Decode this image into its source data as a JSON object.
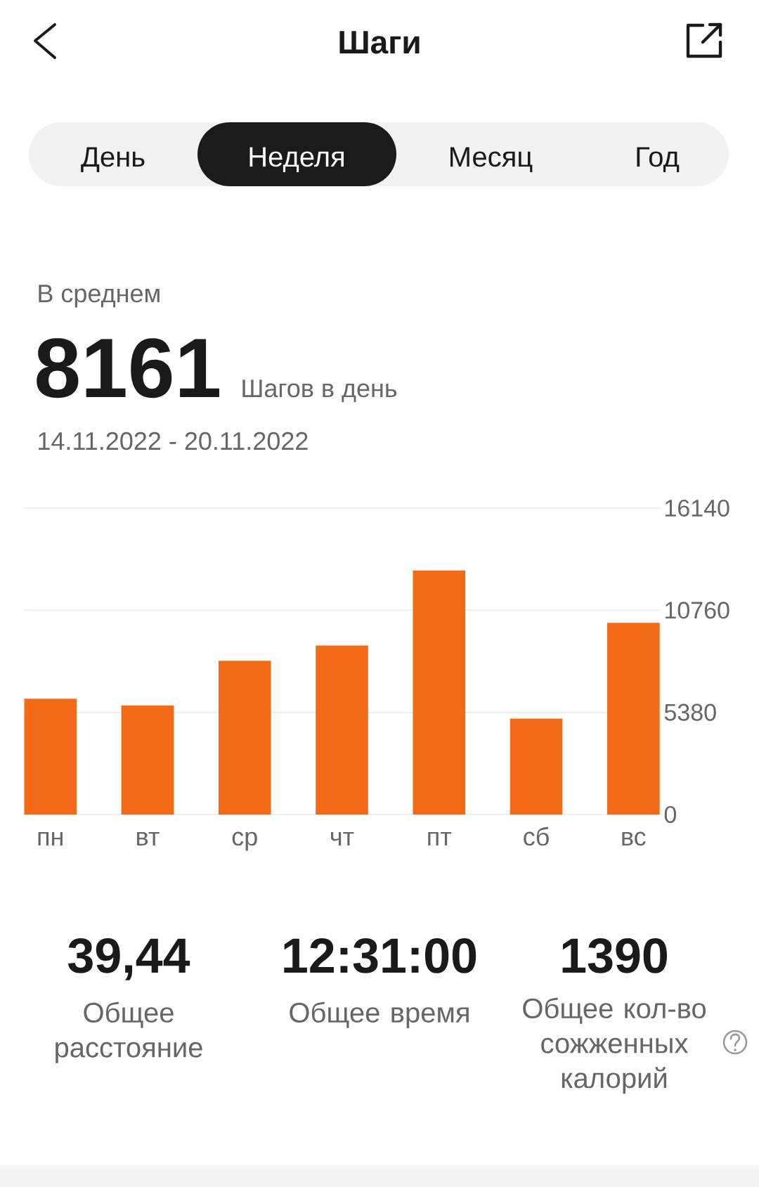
{
  "chart_data": {
    "type": "bar",
    "title": "Шаги",
    "subtitle": "14.11.2022 - 20.11.2022",
    "categories": [
      "пн",
      "вт",
      "ср",
      "чт",
      "пт",
      "сб",
      "вс"
    ],
    "values": [
      6100,
      5750,
      8100,
      8900,
      12850,
      5050,
      10100
    ],
    "color": "#f36b18",
    "ylim": [
      0,
      16140
    ],
    "yticks": [
      0,
      5380,
      10760,
      16140
    ],
    "grid": "y",
    "annotations": [
      "День",
      "Неделя",
      "Месяц",
      "Год",
      "В среднем",
      "8161",
      "Шагов в день",
      "39,44",
      "Общее расстояние",
      "12:31:00",
      "Общее время",
      "1390",
      "Общее кол-во сожженных калорий"
    ]
  }
}
